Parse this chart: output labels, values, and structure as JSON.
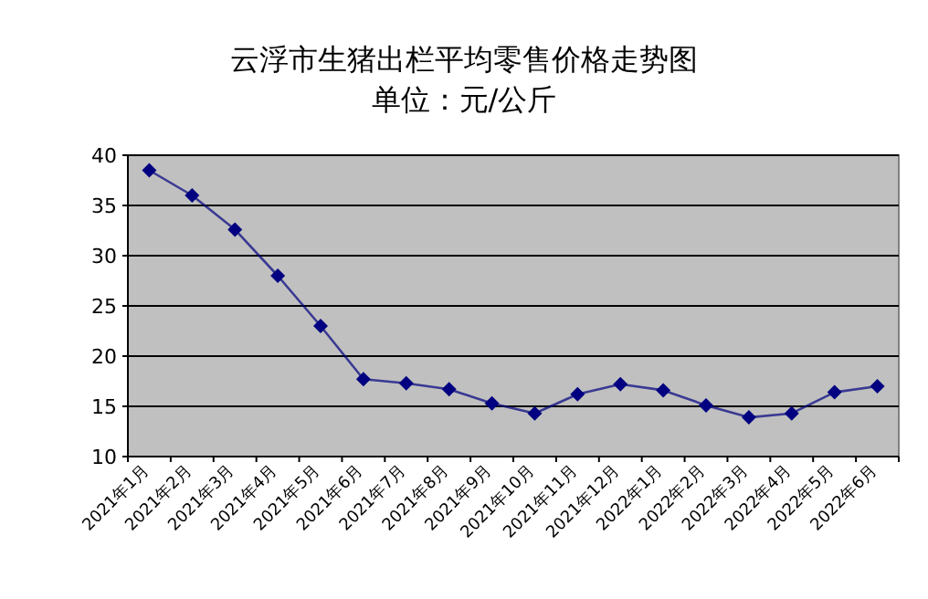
{
  "chart_data": {
    "type": "line",
    "title": "云浮市生猪出栏平均零售价格走势图",
    "subtitle": "单位：元/公斤",
    "categories": [
      "2021年1月",
      "2021年2月",
      "2021年3月",
      "2021年4月",
      "2021年5月",
      "2021年6月",
      "2021年7月",
      "2021年8月",
      "2021年9月",
      "2021年10月",
      "2021年11月",
      "2021年12月",
      "2022年1月",
      "2022年2月",
      "2022年3月",
      "2022年4月",
      "2022年5月",
      "2022年6月"
    ],
    "series": [
      {
        "color": "#000080",
        "values": [
          38.5,
          36,
          32.6,
          28,
          23,
          17.7,
          17.3,
          16.7,
          15.3,
          14.3,
          16.2,
          17.2,
          16.6,
          15.1,
          13.9,
          14.3,
          16.4,
          17.0
        ]
      }
    ],
    "ylim": [
      10,
      40
    ],
    "yticks": [
      10,
      15,
      20,
      25,
      30,
      35,
      40
    ],
    "grid": "y",
    "marker": "diamond",
    "line_style": "solid"
  }
}
